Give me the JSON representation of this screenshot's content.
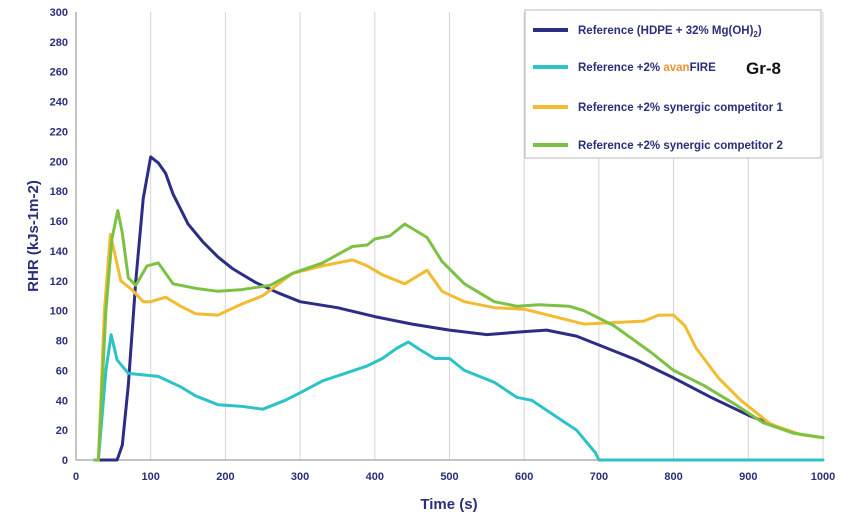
{
  "chart_data": {
    "type": "line",
    "xlabel": "Time (s)",
    "ylabel": "RHR (kJs-1m-2)",
    "xlim": [
      0,
      1000
    ],
    "ylim": [
      0,
      300
    ],
    "xticks": [
      0,
      100,
      200,
      300,
      400,
      500,
      600,
      700,
      800,
      900,
      1000
    ],
    "yticks": [
      0,
      20,
      40,
      60,
      80,
      100,
      120,
      140,
      160,
      180,
      200,
      220,
      240,
      260,
      280,
      300
    ],
    "grid": "vertical",
    "legend": {
      "placement": "top-right",
      "tag": "Gr-8",
      "entries": [
        {
          "prefix": "Reference (HDPE + 32% Mg(OH)",
          "subscript": "2",
          "suffix": ")"
        },
        {
          "prefix": "Reference +2% ",
          "accent": "avan",
          "suffix": "FIRE"
        },
        {
          "prefix": "Reference +2% synergic competitor 1"
        },
        {
          "prefix": "Reference +2% synergic competitor 2"
        }
      ]
    },
    "series": [
      {
        "color": "#2c2d84",
        "points": [
          [
            25,
            0
          ],
          [
            55,
            0
          ],
          [
            62,
            10
          ],
          [
            70,
            50
          ],
          [
            80,
            120
          ],
          [
            90,
            175
          ],
          [
            100,
            203
          ],
          [
            110,
            199
          ],
          [
            120,
            192
          ],
          [
            130,
            178
          ],
          [
            140,
            168
          ],
          [
            150,
            158
          ],
          [
            170,
            146
          ],
          [
            190,
            136
          ],
          [
            210,
            128
          ],
          [
            240,
            119
          ],
          [
            270,
            112
          ],
          [
            300,
            106
          ],
          [
            350,
            102
          ],
          [
            400,
            96
          ],
          [
            450,
            91
          ],
          [
            500,
            87
          ],
          [
            550,
            84
          ],
          [
            600,
            86
          ],
          [
            630,
            87
          ],
          [
            670,
            83
          ],
          [
            700,
            77
          ],
          [
            750,
            67
          ],
          [
            800,
            55
          ],
          [
            850,
            42
          ],
          [
            900,
            30
          ],
          [
            940,
            22
          ]
        ]
      },
      {
        "color": "#2bc3c8",
        "points": [
          [
            25,
            0
          ],
          [
            30,
            0
          ],
          [
            40,
            60
          ],
          [
            47,
            84
          ],
          [
            55,
            67
          ],
          [
            70,
            58
          ],
          [
            90,
            57
          ],
          [
            110,
            56
          ],
          [
            140,
            49
          ],
          [
            160,
            43
          ],
          [
            190,
            37
          ],
          [
            220,
            36
          ],
          [
            250,
            34
          ],
          [
            280,
            40
          ],
          [
            300,
            45
          ],
          [
            330,
            53
          ],
          [
            360,
            58
          ],
          [
            390,
            63
          ],
          [
            410,
            68
          ],
          [
            430,
            75
          ],
          [
            445,
            79
          ],
          [
            460,
            74
          ],
          [
            480,
            68
          ],
          [
            500,
            68
          ],
          [
            520,
            60
          ],
          [
            560,
            52
          ],
          [
            590,
            42
          ],
          [
            610,
            40
          ],
          [
            640,
            30
          ],
          [
            670,
            20
          ],
          [
            695,
            5
          ],
          [
            700,
            0
          ],
          [
            1000,
            0
          ]
        ]
      },
      {
        "color": "#f2bb31",
        "points": [
          [
            25,
            0
          ],
          [
            30,
            0
          ],
          [
            38,
            100
          ],
          [
            46,
            151
          ],
          [
            52,
            138
          ],
          [
            60,
            120
          ],
          [
            75,
            114
          ],
          [
            90,
            106
          ],
          [
            100,
            106
          ],
          [
            120,
            109
          ],
          [
            140,
            103
          ],
          [
            160,
            98
          ],
          [
            190,
            97
          ],
          [
            220,
            104
          ],
          [
            250,
            110
          ],
          [
            290,
            125
          ],
          [
            330,
            130
          ],
          [
            370,
            134
          ],
          [
            390,
            130
          ],
          [
            410,
            124
          ],
          [
            440,
            118
          ],
          [
            460,
            124
          ],
          [
            470,
            127
          ],
          [
            490,
            113
          ],
          [
            520,
            106
          ],
          [
            560,
            102
          ],
          [
            600,
            101
          ],
          [
            640,
            96
          ],
          [
            680,
            91
          ],
          [
            720,
            92
          ],
          [
            760,
            93
          ],
          [
            780,
            97
          ],
          [
            800,
            97
          ],
          [
            815,
            90
          ],
          [
            830,
            75
          ],
          [
            860,
            55
          ],
          [
            890,
            40
          ],
          [
            930,
            24
          ],
          [
            970,
            17
          ],
          [
            1000,
            15
          ]
        ]
      },
      {
        "color": "#7cc143",
        "points": [
          [
            25,
            0
          ],
          [
            30,
            0
          ],
          [
            40,
            100
          ],
          [
            48,
            148
          ],
          [
            56,
            167
          ],
          [
            62,
            152
          ],
          [
            70,
            122
          ],
          [
            80,
            117
          ],
          [
            95,
            130
          ],
          [
            110,
            132
          ],
          [
            130,
            118
          ],
          [
            160,
            115
          ],
          [
            190,
            113
          ],
          [
            220,
            114
          ],
          [
            260,
            117
          ],
          [
            290,
            125
          ],
          [
            330,
            132
          ],
          [
            370,
            143
          ],
          [
            390,
            144
          ],
          [
            400,
            148
          ],
          [
            420,
            150
          ],
          [
            440,
            158
          ],
          [
            450,
            155
          ],
          [
            470,
            149
          ],
          [
            490,
            133
          ],
          [
            520,
            118
          ],
          [
            560,
            106
          ],
          [
            590,
            103
          ],
          [
            620,
            104
          ],
          [
            660,
            103
          ],
          [
            680,
            100
          ],
          [
            720,
            90
          ],
          [
            770,
            72
          ],
          [
            800,
            60
          ],
          [
            840,
            50
          ],
          [
            880,
            38
          ],
          [
            920,
            25
          ],
          [
            960,
            18
          ],
          [
            1000,
            15
          ]
        ]
      }
    ]
  }
}
